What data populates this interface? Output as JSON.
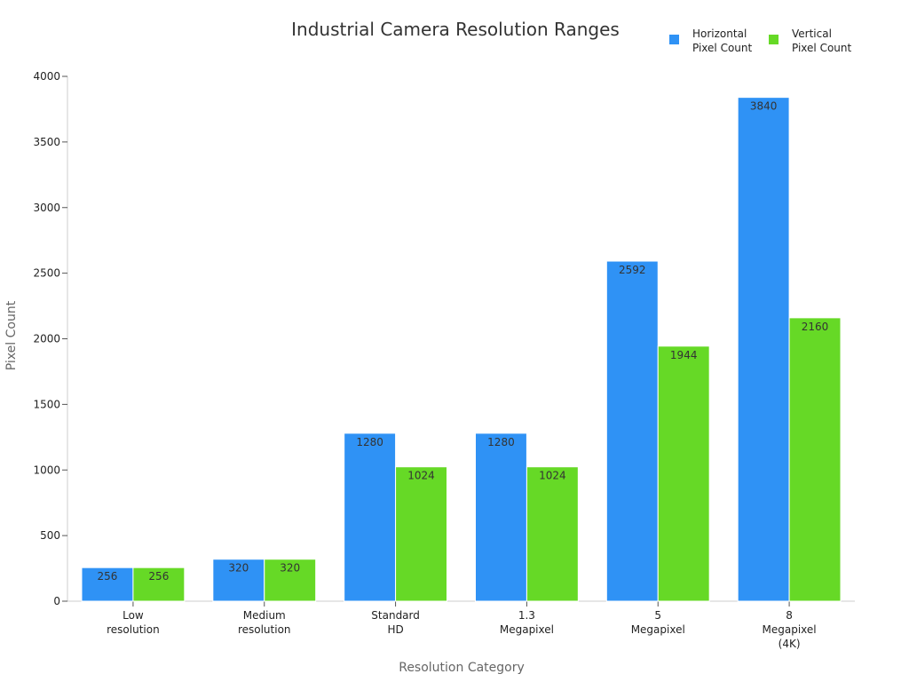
{
  "chart_data": {
    "type": "bar",
    "title": "Industrial Camera Resolution Ranges",
    "xlabel": "Resolution Category",
    "ylabel": "Pixel Count",
    "ylim": [
      0,
      4000
    ],
    "yticks": [
      0,
      500,
      1000,
      1500,
      2000,
      2500,
      3000,
      3500,
      4000
    ],
    "grid": false,
    "legend_position": "top-right",
    "categories": [
      [
        "Low",
        "resolution"
      ],
      [
        "Medium",
        "resolution"
      ],
      [
        "Standard",
        "HD"
      ],
      [
        "1.3",
        "Megapixel"
      ],
      [
        "5",
        "Megapixel"
      ],
      [
        "8",
        "Megapixel",
        "(4K)"
      ]
    ],
    "series": [
      {
        "name": [
          "Horizontal",
          "Pixel Count"
        ],
        "color": "#2f92f5",
        "values": [
          256,
          320,
          1280,
          1280,
          2592,
          3840
        ]
      },
      {
        "name": [
          "Vertical",
          "Pixel Count"
        ],
        "color": "#66d926",
        "values": [
          256,
          320,
          1024,
          1024,
          1944,
          2160
        ]
      }
    ]
  }
}
